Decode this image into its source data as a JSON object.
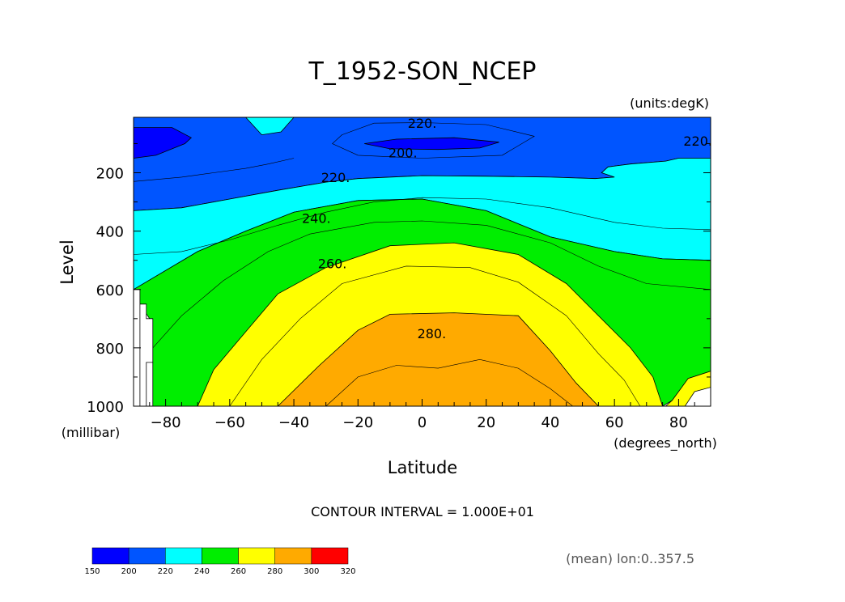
{
  "chart_data": {
    "type": "heatmap",
    "title": "T_1952-SON_NCEP",
    "units_note": "(units:degK)",
    "xlabel": "Latitude",
    "x_units": "(degrees_north)",
    "ylabel": "Level",
    "y_units": "(millibar)",
    "xlim": [
      -90,
      90
    ],
    "ylim": [
      1000,
      10
    ],
    "xticks": [
      -80,
      -60,
      -40,
      -20,
      0,
      20,
      40,
      60,
      80
    ],
    "yticks": [
      200,
      400,
      600,
      800,
      1000
    ],
    "contour_interval_text": "CONTOUR INTERVAL = 1.000E+01",
    "footer_note": "(mean) lon:0..357.5",
    "colorbar": {
      "levels": [
        150,
        200,
        220,
        240,
        260,
        280,
        300,
        320
      ],
      "colors": [
        "#0000ff",
        "#0055ff",
        "#00ffff",
        "#00ee00",
        "#ffff00",
        "#ffaa00",
        "#ff0000"
      ]
    },
    "contour_labels": [
      {
        "text": "220.",
        "lat": 0,
        "lev": 30
      },
      {
        "text": "220.",
        "lat": 86,
        "lev": 90
      },
      {
        "text": "200.",
        "lat": -6,
        "lev": 130
      },
      {
        "text": "220.",
        "lat": -27,
        "lev": 215
      },
      {
        "text": "240.",
        "lat": -33,
        "lev": 355
      },
      {
        "text": "260.",
        "lat": -28,
        "lev": 510
      },
      {
        "text": "280.",
        "lat": 3,
        "lev": 750
      }
    ],
    "regions": [
      {
        "value_band": "200-220",
        "color": "#0055ff",
        "points": [
          [
            -90,
            10
          ],
          [
            90,
            10
          ],
          [
            90,
            150
          ],
          [
            80,
            150
          ],
          [
            76,
            160
          ],
          [
            65,
            170
          ],
          [
            58,
            180
          ],
          [
            56,
            200
          ],
          [
            60,
            215
          ],
          [
            54,
            220
          ],
          [
            40,
            215
          ],
          [
            20,
            212
          ],
          [
            0,
            210
          ],
          [
            -20,
            220
          ],
          [
            -30,
            232
          ],
          [
            -45,
            260
          ],
          [
            -60,
            290
          ],
          [
            -75,
            320
          ],
          [
            -90,
            330
          ]
        ]
      },
      {
        "value_band": "below 200",
        "color": "#0000ff",
        "points": [
          [
            -90,
            45
          ],
          [
            -78,
            45
          ],
          [
            -72,
            80
          ],
          [
            -74,
            100
          ],
          [
            -83,
            140
          ],
          [
            -90,
            150
          ]
        ]
      },
      {
        "value_band": "below 200",
        "color": "#0000ff",
        "points": [
          [
            -18,
            100
          ],
          [
            -8,
            85
          ],
          [
            10,
            80
          ],
          [
            24,
            95
          ],
          [
            18,
            115
          ],
          [
            5,
            120
          ],
          [
            -10,
            118
          ]
        ]
      },
      {
        "value_band": "220-240",
        "color": "#00ffff",
        "points": [
          [
            -45,
            10
          ],
          [
            -55,
            10
          ],
          [
            -50,
            70
          ],
          [
            -44,
            60
          ],
          [
            -40,
            10
          ]
        ]
      },
      {
        "value_band": "220-240",
        "color": "#00ffff",
        "points": [
          [
            -90,
            330
          ],
          [
            -75,
            320
          ],
          [
            -60,
            290
          ],
          [
            -45,
            260
          ],
          [
            -30,
            232
          ],
          [
            -20,
            220
          ],
          [
            0,
            210
          ],
          [
            20,
            212
          ],
          [
            40,
            215
          ],
          [
            54,
            220
          ],
          [
            60,
            215
          ],
          [
            56,
            200
          ],
          [
            58,
            180
          ],
          [
            65,
            170
          ],
          [
            76,
            160
          ],
          [
            80,
            150
          ],
          [
            90,
            150
          ],
          [
            90,
            500
          ],
          [
            75,
            495
          ],
          [
            60,
            470
          ],
          [
            40,
            420
          ],
          [
            20,
            330
          ],
          [
            0,
            290
          ],
          [
            -20,
            295
          ],
          [
            -40,
            335
          ],
          [
            -55,
            400
          ],
          [
            -70,
            470
          ],
          [
            -90,
            600
          ]
        ]
      },
      {
        "value_band": "240-260",
        "color": "#00ee00",
        "points": [
          [
            -90,
            600
          ],
          [
            -70,
            470
          ],
          [
            -55,
            400
          ],
          [
            -40,
            335
          ],
          [
            -20,
            295
          ],
          [
            0,
            290
          ],
          [
            20,
            330
          ],
          [
            40,
            420
          ],
          [
            60,
            470
          ],
          [
            75,
            495
          ],
          [
            90,
            500
          ],
          [
            90,
            880
          ],
          [
            83,
            905
          ],
          [
            78,
            980
          ],
          [
            75,
            1000
          ],
          [
            -84,
            1000
          ],
          [
            -84,
            850
          ],
          [
            -86,
            800
          ],
          [
            -85,
            700
          ],
          [
            -88,
            650
          ]
        ]
      },
      {
        "value_band": "260-280",
        "color": "#ffff00",
        "points": [
          [
            -70,
            1000
          ],
          [
            -65,
            875
          ],
          [
            -55,
            745
          ],
          [
            -45,
            615
          ],
          [
            -30,
            525
          ],
          [
            -10,
            450
          ],
          [
            10,
            440
          ],
          [
            30,
            480
          ],
          [
            45,
            580
          ],
          [
            55,
            690
          ],
          [
            65,
            800
          ],
          [
            72,
            900
          ],
          [
            75,
            1000
          ]
        ]
      },
      {
        "value_band": "260-280",
        "color": "#ffff00",
        "points": [
          [
            90,
            880
          ],
          [
            83,
            905
          ],
          [
            78,
            980
          ],
          [
            76,
            1000
          ],
          [
            82,
            1000
          ],
          [
            85,
            950
          ],
          [
            90,
            935
          ]
        ]
      },
      {
        "value_band": "280-300",
        "color": "#ffaa00",
        "points": [
          [
            -45,
            1000
          ],
          [
            -32,
            860
          ],
          [
            -20,
            740
          ],
          [
            -10,
            685
          ],
          [
            10,
            680
          ],
          [
            30,
            690
          ],
          [
            40,
            810
          ],
          [
            48,
            920
          ],
          [
            55,
            1000
          ]
        ]
      },
      {
        "value_band": "above 320 / undefined",
        "color": "#ffffff",
        "points": [
          [
            -90,
            600
          ],
          [
            -88,
            600
          ],
          [
            -88,
            1000
          ],
          [
            -90,
            1000
          ]
        ]
      },
      {
        "value_band": "above 320 / undefined",
        "color": "#ffffff",
        "points": [
          [
            -88,
            650
          ],
          [
            -86,
            650
          ],
          [
            -86,
            700
          ],
          [
            -84,
            700
          ],
          [
            -84,
            850
          ],
          [
            -86,
            850
          ],
          [
            -86,
            1000
          ],
          [
            -88,
            1000
          ]
        ]
      }
    ],
    "contour_lines": [
      {
        "level": 210,
        "points": [
          [
            -90,
            230
          ],
          [
            -75,
            215
          ],
          [
            -65,
            200
          ],
          [
            -55,
            185
          ],
          [
            -48,
            170
          ],
          [
            -40,
            150
          ]
        ]
      },
      {
        "level": 220,
        "points": [
          [
            -25,
            70
          ],
          [
            -15,
            30
          ],
          [
            0,
            28
          ],
          [
            20,
            35
          ],
          [
            35,
            75
          ],
          [
            25,
            140
          ],
          [
            0,
            150
          ],
          [
            -20,
            140
          ],
          [
            -28,
            100
          ],
          [
            -25,
            70
          ]
        ]
      },
      {
        "level": 230,
        "points": [
          [
            -90,
            480
          ],
          [
            -75,
            470
          ],
          [
            -60,
            430
          ],
          [
            -45,
            380
          ],
          [
            -30,
            335
          ],
          [
            -15,
            300
          ],
          [
            0,
            285
          ],
          [
            20,
            290
          ],
          [
            40,
            320
          ],
          [
            60,
            370
          ],
          [
            75,
            390
          ],
          [
            90,
            395
          ]
        ]
      },
      {
        "level": 250,
        "points": [
          [
            -84,
            800
          ],
          [
            -75,
            690
          ],
          [
            -62,
            570
          ],
          [
            -48,
            470
          ],
          [
            -35,
            410
          ],
          [
            -15,
            370
          ],
          [
            0,
            365
          ],
          [
            20,
            380
          ],
          [
            40,
            440
          ],
          [
            55,
            520
          ],
          [
            70,
            580
          ],
          [
            90,
            600
          ]
        ]
      },
      {
        "level": 270,
        "points": [
          [
            -60,
            1000
          ],
          [
            -50,
            840
          ],
          [
            -38,
            700
          ],
          [
            -25,
            580
          ],
          [
            -5,
            520
          ],
          [
            15,
            525
          ],
          [
            30,
            575
          ],
          [
            45,
            690
          ],
          [
            55,
            820
          ],
          [
            63,
            910
          ],
          [
            68,
            1000
          ]
        ]
      },
      {
        "level": 290,
        "points": [
          [
            -30,
            1000
          ],
          [
            -20,
            900
          ],
          [
            -8,
            860
          ],
          [
            5,
            870
          ],
          [
            18,
            840
          ],
          [
            30,
            870
          ],
          [
            40,
            940
          ],
          [
            47,
            1000
          ]
        ]
      }
    ]
  }
}
